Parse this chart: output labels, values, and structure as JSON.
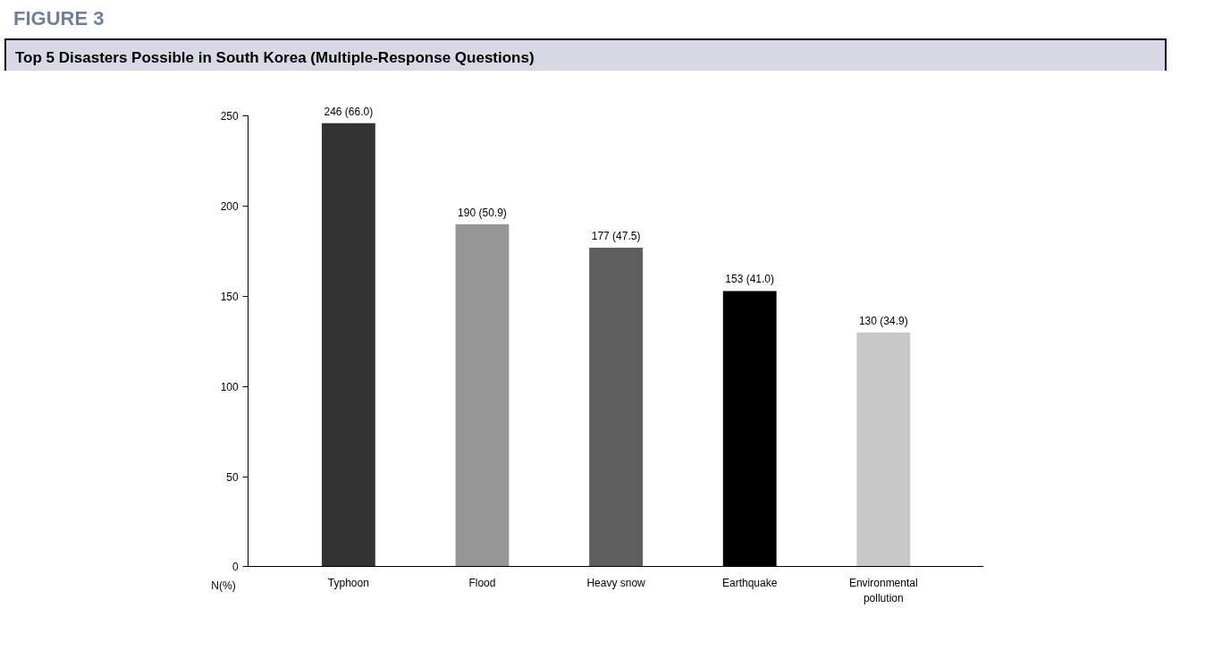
{
  "chart_data": {
    "type": "bar",
    "title": "Top 5 Disasters Possible in South Korea (Multiple-Response Questions)",
    "categories": [
      "Typhoon",
      "Flood",
      "Heavy snow",
      "Earthquake",
      "Environmental pollution"
    ],
    "values": [
      246,
      190,
      177,
      153,
      130
    ],
    "colors": [
      "#333333",
      "#969696",
      "#5f5f5f",
      "#000000",
      "#c8c8c8"
    ],
    "value_labels": [
      "246 (66.0)",
      "190 (50.9)",
      "177 (47.5)",
      "153 (41.0)",
      "130 (34.9)"
    ],
    "ylim": [
      0,
      250
    ],
    "yticks": [
      0,
      50,
      100,
      150,
      200,
      250
    ],
    "annotations": [
      "FIGURE 3",
      "N(%)"
    ],
    "grid": false
  }
}
